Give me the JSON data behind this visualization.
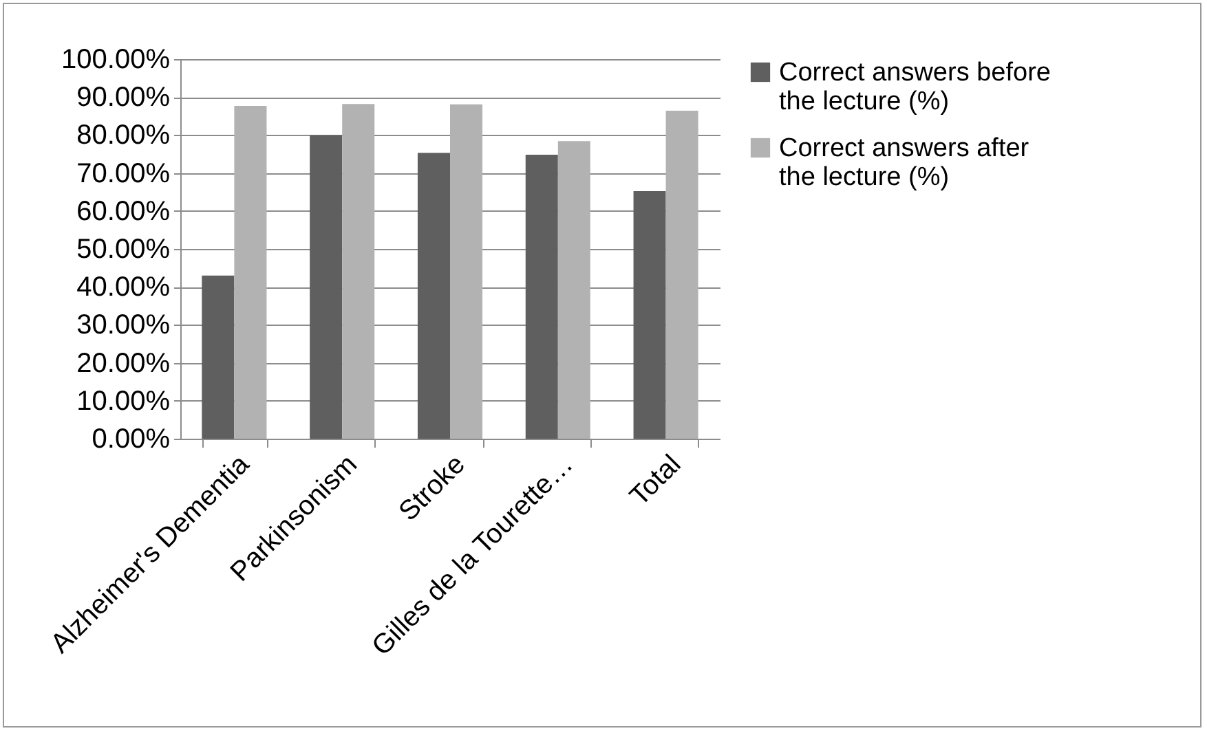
{
  "chart_data": {
    "type": "bar",
    "categories": [
      "Alzheimer's Dementia",
      "Parkinsonism",
      "Stroke",
      "Gilles de la Tourette…",
      "Total"
    ],
    "series": [
      {
        "name": "Correct answers before the lecture (%)",
        "color": "#5f5f5f",
        "values": [
          43.0,
          80.0,
          75.3,
          74.8,
          65.2
        ]
      },
      {
        "name": "Correct answers after the lecture  (%)",
        "color": "#b2b2b2",
        "values": [
          87.7,
          88.2,
          88.1,
          78.4,
          86.4
        ]
      }
    ],
    "ylim": [
      0,
      100
    ],
    "yticks": [
      {
        "value": 0,
        "label": "0.00%"
      },
      {
        "value": 10,
        "label": "10.00%"
      },
      {
        "value": 20,
        "label": "20.00%"
      },
      {
        "value": 30,
        "label": "30.00%"
      },
      {
        "value": 40,
        "label": "40.00%"
      },
      {
        "value": 50,
        "label": "50.00%"
      },
      {
        "value": 60,
        "label": "60.00%"
      },
      {
        "value": 70,
        "label": "70.00%"
      },
      {
        "value": 80,
        "label": "80.00%"
      },
      {
        "value": 90,
        "label": "90.00%"
      },
      {
        "value": 100,
        "label": "100.00%"
      }
    ],
    "grid": "y",
    "legend": "right"
  }
}
